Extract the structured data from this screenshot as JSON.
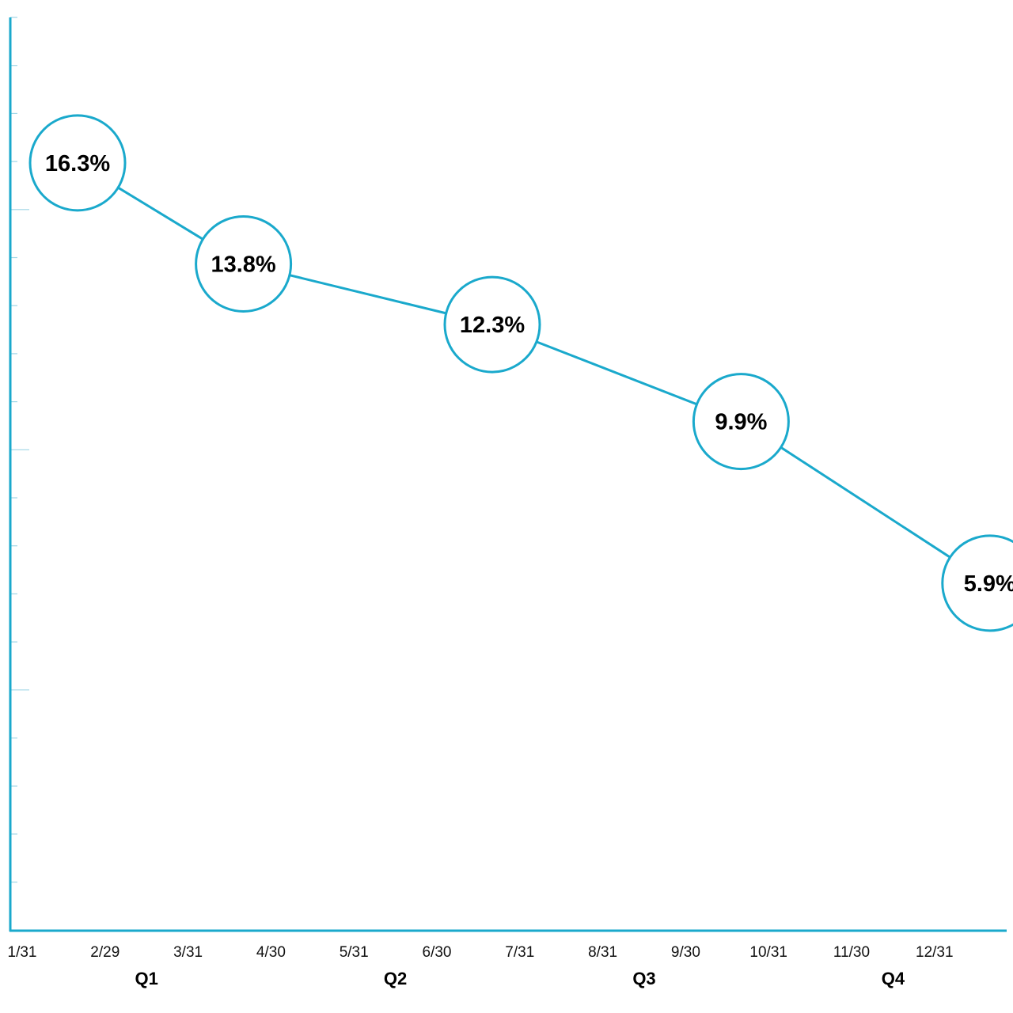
{
  "chart_data": {
    "type": "line",
    "x": [
      "1/31",
      "2/29",
      "3/31",
      "4/30",
      "5/31",
      "6/30",
      "7/31",
      "8/31",
      "9/30",
      "10/31",
      "11/30",
      "12/31"
    ],
    "quarters": [
      "Q1",
      "Q2",
      "Q3",
      "Q4"
    ],
    "series": [
      {
        "points": [
          {
            "x": "1/31",
            "y": 16.3,
            "label": "16.3%"
          },
          {
            "x": "3/31",
            "y": 13.8,
            "label": "13.8%"
          },
          {
            "x": "6/30",
            "y": 12.3,
            "label": "12.3%"
          },
          {
            "x": "9/30",
            "y": 9.9,
            "label": "9.9%"
          },
          {
            "x": "12/31",
            "y": 5.9,
            "label": "5.9%"
          }
        ]
      }
    ],
    "ylim": [
      -2.7,
      19.9
    ],
    "grid": false,
    "colors": {
      "accent": "#1aa9cc",
      "text": "#000000"
    }
  }
}
